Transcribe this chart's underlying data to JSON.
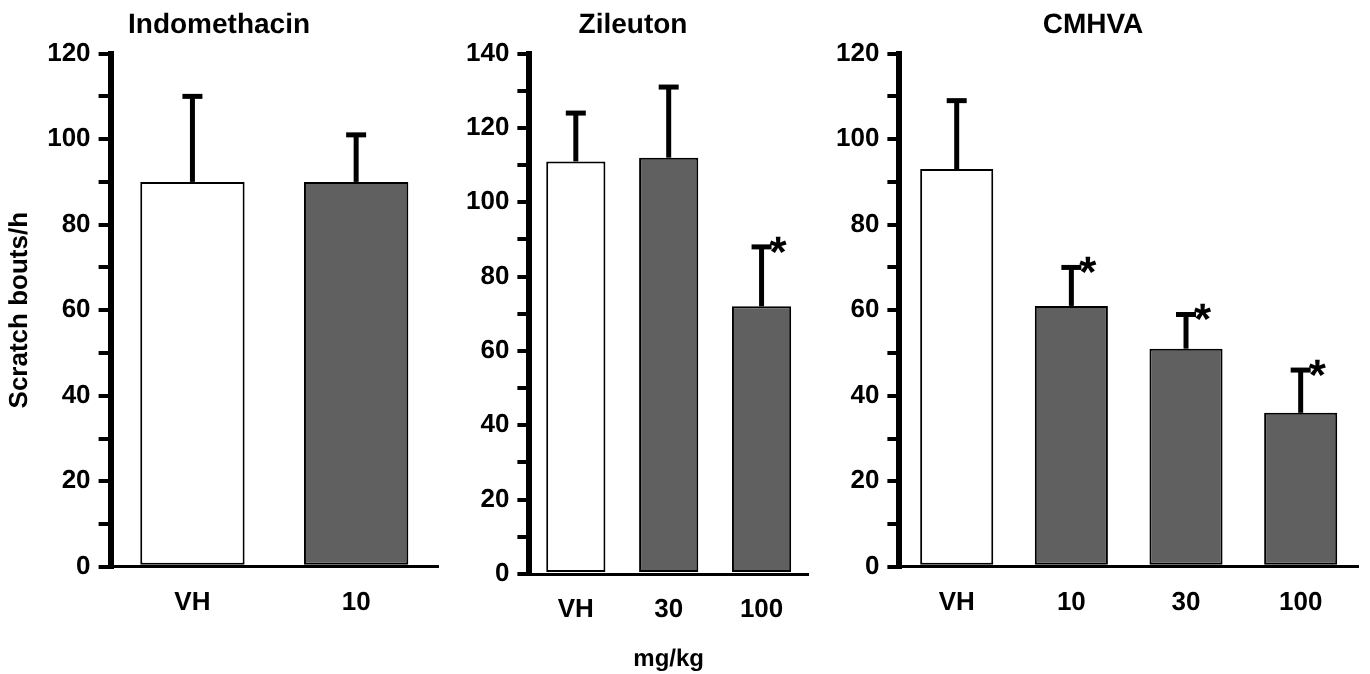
{
  "chart_data": [
    {
      "type": "bar",
      "title": "Indomethacin",
      "ylabel": "Scratch bouts/h",
      "categories": [
        "VH",
        "10"
      ],
      "values": [
        90,
        90
      ],
      "colors": [
        "#ffffff",
        "#606060"
      ],
      "errors": [
        [
          90,
          110
        ],
        [
          90,
          101
        ]
      ],
      "ylim": [
        0,
        120
      ],
      "yticks": [
        0,
        {
          "value": 10,
          "label": null
        },
        20,
        {
          "value": 30,
          "label": null
        },
        40,
        {
          "value": 50,
          "label": null
        },
        60,
        {
          "value": 70,
          "label": null
        },
        80,
        {
          "value": 90,
          "label": null
        },
        100,
        {
          "value": 110,
          "label": null
        },
        120
      ],
      "grid": false,
      "legend": false
    },
    {
      "type": "bar",
      "title": "Zileuton",
      "xlabel": "mg/kg",
      "categories": [
        "VH",
        "30",
        "100"
      ],
      "values": [
        111,
        112,
        72
      ],
      "colors": [
        "#ffffff",
        "#606060",
        "#606060"
      ],
      "errors": [
        [
          111,
          124
        ],
        [
          112,
          131
        ],
        [
          72,
          88
        ]
      ],
      "ylim": [
        0,
        140
      ],
      "yticks": [
        0,
        {
          "value": 10,
          "label": null
        },
        20,
        {
          "value": 30,
          "label": null
        },
        40,
        {
          "value": 50,
          "label": null
        },
        60,
        {
          "value": 70,
          "label": null
        },
        80,
        {
          "value": 90,
          "label": null
        },
        100,
        {
          "value": 110,
          "label": null
        },
        120,
        {
          "value": 130,
          "label": null
        },
        140
      ],
      "annotations": [
        {
          "text": "*",
          "x": "100",
          "y": 88
        }
      ],
      "grid": false,
      "legend": false
    },
    {
      "type": "bar",
      "title": "CMHVA",
      "categories": [
        "VH",
        "10",
        "30",
        "100"
      ],
      "values": [
        93,
        61,
        51,
        36
      ],
      "colors": [
        "#ffffff",
        "#606060",
        "#606060",
        "#606060"
      ],
      "errors": [
        [
          93,
          109
        ],
        [
          61,
          70
        ],
        [
          51,
          59
        ],
        [
          36,
          46
        ]
      ],
      "ylim": [
        0,
        120
      ],
      "yticks": [
        0,
        {
          "value": 10,
          "label": null
        },
        20,
        {
          "value": 30,
          "label": null
        },
        40,
        {
          "value": 50,
          "label": null
        },
        60,
        {
          "value": 70,
          "label": null
        },
        80,
        {
          "value": 90,
          "label": null
        },
        100,
        {
          "value": 110,
          "label": null
        },
        120
      ],
      "annotations": [
        {
          "text": "*",
          "x": "10",
          "y": 70
        },
        {
          "text": "*",
          "x": "30",
          "y": 59
        },
        {
          "text": "*",
          "x": "100",
          "y": 46
        }
      ],
      "grid": false,
      "legend": false
    }
  ]
}
